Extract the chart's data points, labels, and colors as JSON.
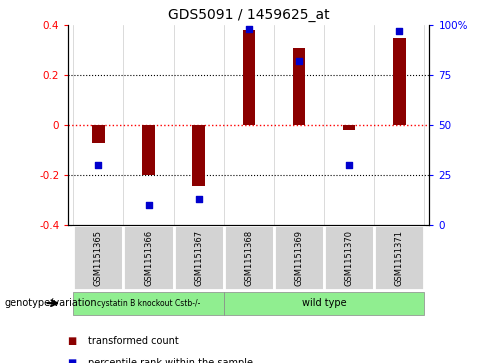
{
  "title": "GDS5091 / 1459625_at",
  "samples": [
    "GSM1151365",
    "GSM1151366",
    "GSM1151367",
    "GSM1151368",
    "GSM1151369",
    "GSM1151370",
    "GSM1151371"
  ],
  "transformed_count": [
    -0.07,
    -0.2,
    -0.245,
    0.38,
    0.31,
    -0.02,
    0.35
  ],
  "percentile_rank": [
    30,
    10,
    13,
    98,
    82,
    30,
    97
  ],
  "group1_samples": [
    0,
    1,
    2
  ],
  "group1_label": "cystatin B knockout Cstb-/-",
  "group2_samples": [
    3,
    4,
    5,
    6
  ],
  "group2_label": "wild type",
  "group_color": "#90EE90",
  "bar_color": "#8B0000",
  "dot_color": "#0000CD",
  "ylim": [
    -0.4,
    0.4
  ],
  "y2lim": [
    0,
    100
  ],
  "yticks": [
    -0.4,
    -0.2,
    0.0,
    0.2,
    0.4
  ],
  "y2ticks": [
    0,
    25,
    50,
    75,
    100
  ],
  "ytick_labels": [
    "-0.4",
    "-0.2",
    "0",
    "0.2",
    "0.4"
  ],
  "y2tick_labels": [
    "0",
    "25",
    "50",
    "75",
    "100%"
  ],
  "genotype_label": "genotype/variation",
  "legend_bar_label": "transformed count",
  "legend_dot_label": "percentile rank within the sample",
  "bar_width": 0.25,
  "dot_size": 25,
  "cell_bg": "#d3d3d3",
  "cell_edge": "#ffffff"
}
